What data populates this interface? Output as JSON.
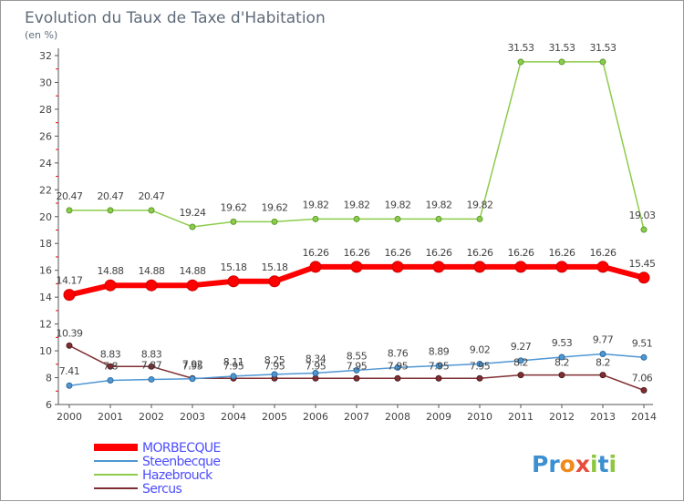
{
  "chart_data": {
    "type": "line",
    "title": "Evolution du Taux de Taxe d'Habitation",
    "subtitle": "(en %)",
    "x": [
      "2000",
      "2001",
      "2002",
      "2003",
      "2004",
      "2005",
      "2006",
      "2007",
      "2008",
      "2009",
      "2010",
      "2011",
      "2012",
      "2013",
      "2014"
    ],
    "ylim": [
      6,
      32
    ],
    "yticks": [
      6,
      8,
      10,
      12,
      14,
      16,
      18,
      20,
      22,
      24,
      26,
      28,
      30,
      32
    ],
    "grid": false,
    "legend_position": "bottom-left",
    "series": [
      {
        "name": "MORBECQUE",
        "color": "#ff0000",
        "values": [
          14.17,
          14.88,
          14.88,
          14.88,
          15.18,
          15.18,
          16.26,
          16.26,
          16.26,
          16.26,
          16.26,
          16.26,
          16.26,
          16.26,
          15.45
        ],
        "labels": [
          "14.17",
          "14.88",
          "14.88",
          "14.88",
          "15.18",
          "15.18",
          "16.26",
          "16.26",
          "16.26",
          "16.26",
          "16.26",
          "16.26",
          "16.26",
          "16.26",
          "15.45"
        ]
      },
      {
        "name": "Steenbecque",
        "color": "#4f97d3",
        "values": [
          7.41,
          7.8,
          7.87,
          7.92,
          8.11,
          8.25,
          8.34,
          8.55,
          8.76,
          8.89,
          9.02,
          9.27,
          9.53,
          9.77,
          9.51
        ],
        "labels": [
          "7.41",
          "7.8",
          "7.87",
          "7.92",
          "8.11",
          "8.25",
          "8.34",
          "8.55",
          "8.76",
          "8.89",
          "9.02",
          "9.27",
          "9.53",
          "9.77",
          "9.51"
        ]
      },
      {
        "name": "Hazebrouck",
        "color": "#8dcc4b",
        "values": [
          20.47,
          20.47,
          20.47,
          19.24,
          19.62,
          19.62,
          19.82,
          19.82,
          19.82,
          19.82,
          19.82,
          31.53,
          31.53,
          31.53,
          19.03
        ],
        "labels": [
          "20.47",
          "20.47",
          "20.47",
          "19.24",
          "19.62",
          "19.62",
          "19.82",
          "19.82",
          "19.82",
          "19.82",
          "19.82",
          "31.53",
          "31.53",
          "31.53",
          "19.03"
        ]
      },
      {
        "name": "Sercus",
        "color": "#7f2f33",
        "values": [
          10.39,
          8.83,
          8.83,
          7.95,
          7.95,
          7.95,
          7.95,
          7.95,
          7.95,
          7.95,
          7.95,
          8.2,
          8.2,
          8.2,
          7.06
        ],
        "labels": [
          "10.39",
          "8.83",
          "8.83",
          "7.95",
          "7.95",
          "7.95",
          "7.95",
          "7.95",
          "7.95",
          "7.95",
          "7.95",
          "8.2",
          "8.2",
          "8.2",
          "7.06"
        ]
      }
    ],
    "legend_colors": {
      "MORBECQUE": "#4d4dff",
      "Steenbecque": "#4d4dff",
      "Hazebrouck": "#4d4dff",
      "Sercus": "#4d4dff"
    },
    "colors": {
      "axis": "#555555",
      "minor_tick": "#ff0000",
      "title": "#5f6b7b",
      "labels": "#444444"
    }
  },
  "brand": {
    "logo_text": "Proxiti"
  }
}
